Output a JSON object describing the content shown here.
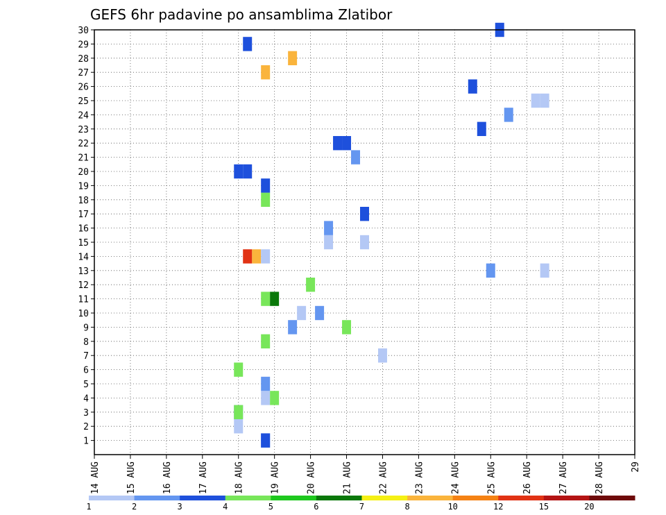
{
  "chart_data": {
    "type": "heatmap",
    "title": "GEFS 6hr padavine po ansamblima Zlatibor",
    "xlabel": "",
    "ylabel": "",
    "x_ticks": [
      "14 AUG",
      "15 AUG",
      "16 AUG",
      "17 AUG",
      "18 AUG",
      "19 AUG",
      "20 AUG",
      "21 AUG",
      "22 AUG",
      "23 AUG",
      "24 AUG",
      "25 AUG",
      "26 AUG",
      "27 AUG",
      "28 AUG",
      "29"
    ],
    "x_unit": "days from 14 AUG 00Z (x axis spans 14 AUG to 29 AUG)",
    "xlim": [
      0,
      15
    ],
    "y_ticks": [
      1,
      2,
      3,
      4,
      5,
      6,
      7,
      8,
      9,
      10,
      11,
      12,
      13,
      14,
      15,
      16,
      17,
      18,
      19,
      20,
      21,
      22,
      23,
      24,
      25,
      26,
      27,
      28,
      29,
      30
    ],
    "ylim": [
      0,
      30
    ],
    "grid": true,
    "colorbar": {
      "labels": [
        "1",
        "2",
        "3",
        "4",
        "5",
        "6",
        "7",
        "8",
        "10",
        "12",
        "15",
        "20"
      ],
      "colors": [
        "#b4c8f5",
        "#6496f0",
        "#1e50dc",
        "#78e65a",
        "#1ec81e",
        "#0a780a",
        "#f5f014",
        "#fab43c",
        "#f58214",
        "#e13214",
        "#b41414",
        "#6e0a0a"
      ]
    },
    "cells": [
      {
        "member": 1,
        "x": 4.75,
        "level": 2
      },
      {
        "member": 1,
        "x": 4.75,
        "level": 3
      },
      {
        "member": 2,
        "x": 4.0,
        "level": 1
      },
      {
        "member": 3,
        "x": 4.0,
        "level": 2
      },
      {
        "member": 3,
        "x": 4.0,
        "level": 4
      },
      {
        "member": 4,
        "x": 4.75,
        "level": 1
      },
      {
        "member": 4,
        "x": 5.0,
        "level": 4
      },
      {
        "member": 5,
        "x": 4.75,
        "level": 2
      },
      {
        "member": 6,
        "x": 4.0,
        "level": 4
      },
      {
        "member": 7,
        "x": 8.0,
        "level": 1
      },
      {
        "member": 8,
        "x": 4.75,
        "level": 4
      },
      {
        "member": 9,
        "x": 5.5,
        "level": 2
      },
      {
        "member": 9,
        "x": 7.0,
        "level": 4
      },
      {
        "member": 10,
        "x": 5.75,
        "level": 1
      },
      {
        "member": 10,
        "x": 6.25,
        "level": 2
      },
      {
        "member": 11,
        "x": 4.75,
        "level": 4
      },
      {
        "member": 11,
        "x": 5.0,
        "level": 6
      },
      {
        "member": 12,
        "x": 6.0,
        "level": 4
      },
      {
        "member": 13,
        "x": 11.0,
        "level": 2
      },
      {
        "member": 13,
        "x": 12.5,
        "level": 1
      },
      {
        "member": 14,
        "x": 4.5,
        "level": 8
      },
      {
        "member": 14,
        "x": 4.75,
        "level": 1
      },
      {
        "member": 14,
        "x": 4.25,
        "level": 10
      },
      {
        "member": 15,
        "x": 6.5,
        "level": 1
      },
      {
        "member": 15,
        "x": 7.5,
        "level": 1
      },
      {
        "member": 16,
        "x": 6.5,
        "level": 2
      },
      {
        "member": 17,
        "x": 7.5,
        "level": 3
      },
      {
        "member": 18,
        "x": 4.75,
        "level": 4
      },
      {
        "member": 19,
        "x": 4.75,
        "level": 3
      },
      {
        "member": 20,
        "x": 4.0,
        "level": 3
      },
      {
        "member": 20,
        "x": 4.25,
        "level": 3
      },
      {
        "member": 21,
        "x": 7.25,
        "level": 2
      },
      {
        "member": 22,
        "x": 6.75,
        "level": 3
      },
      {
        "member": 22,
        "x": 7.0,
        "level": 3
      },
      {
        "member": 23,
        "x": 10.75,
        "level": 3
      },
      {
        "member": 24,
        "x": 11.5,
        "level": 2
      },
      {
        "member": 25,
        "x": 12.25,
        "level": 1
      },
      {
        "member": 25,
        "x": 12.5,
        "level": 1
      },
      {
        "member": 26,
        "x": 10.5,
        "level": 3
      },
      {
        "member": 27,
        "x": 4.75,
        "level": 8
      },
      {
        "member": 28,
        "x": 5.5,
        "level": 8
      },
      {
        "member": 29,
        "x": 4.25,
        "level": 3
      },
      {
        "member": 30,
        "x": 11.25,
        "level": 3
      }
    ]
  }
}
